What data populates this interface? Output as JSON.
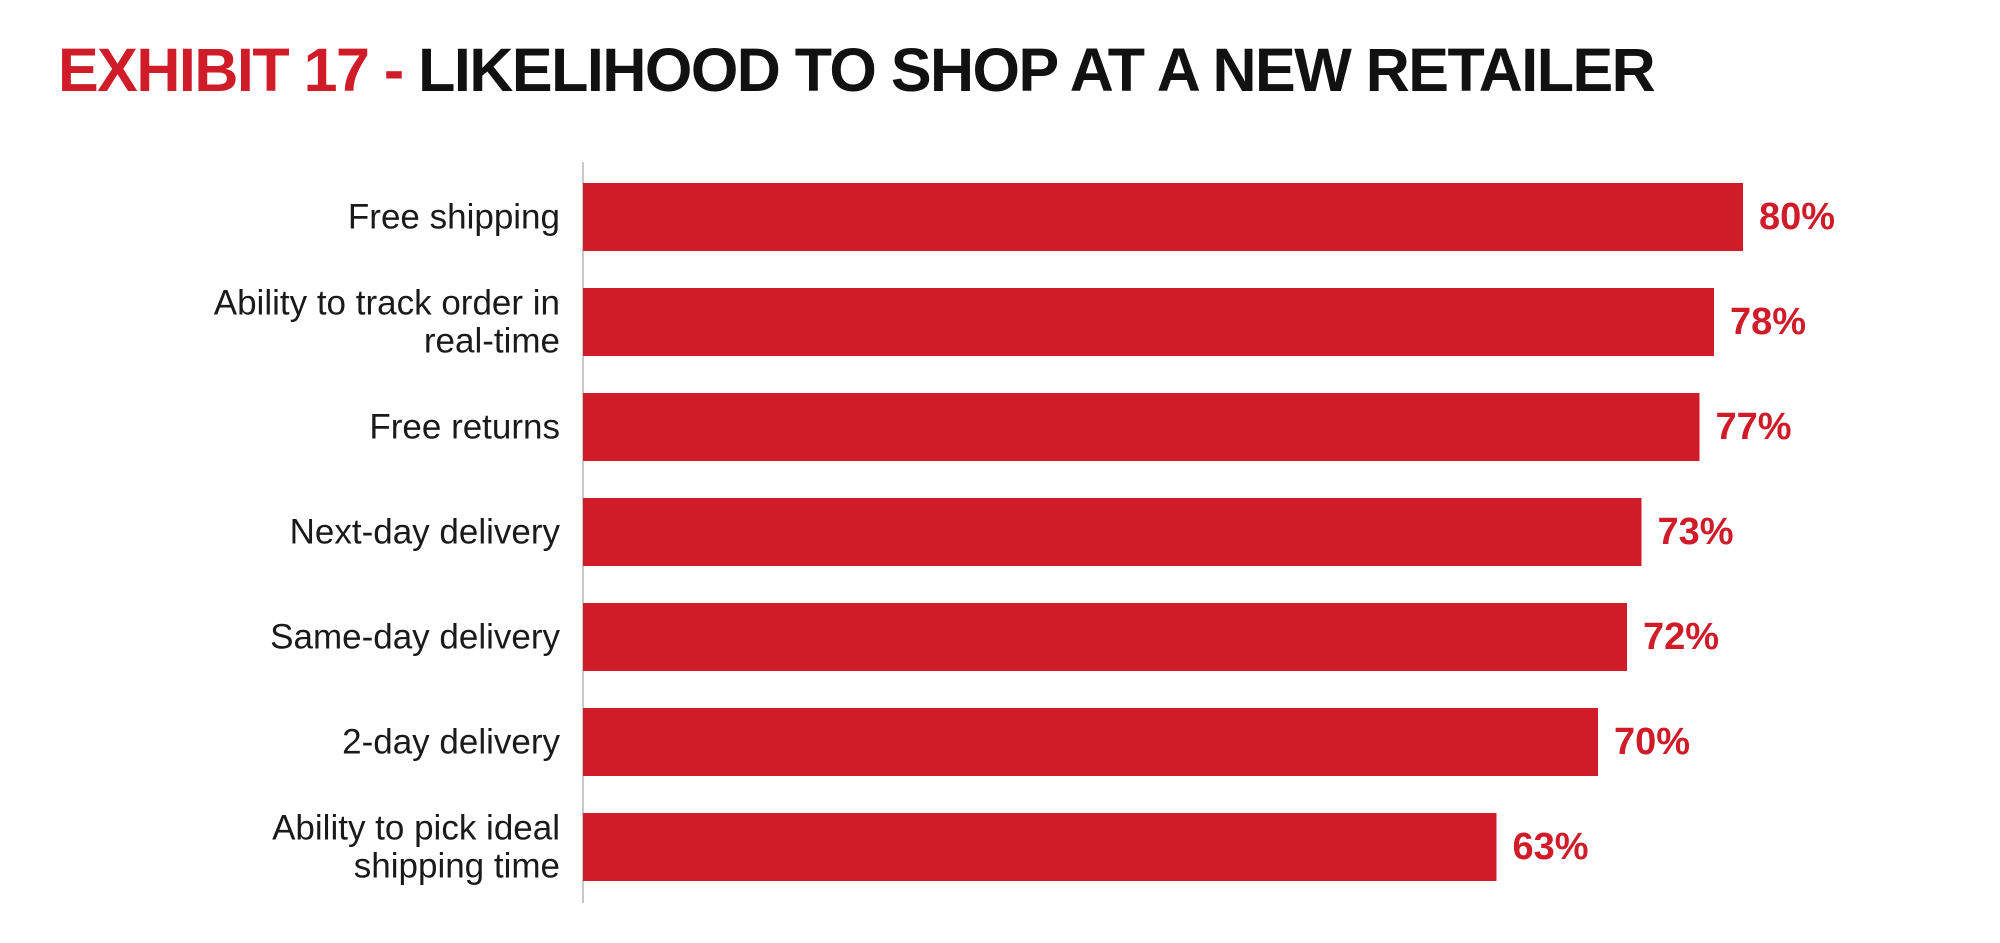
{
  "title": {
    "prefix": "EXHIBIT 17 -",
    "main": "LIKELIHOOD TO SHOP AT A NEW RETAILER"
  },
  "colors": {
    "bar": "#d01c29",
    "value_label": "#d01c29",
    "title_prefix": "#d01c29",
    "title_main": "#111111",
    "axis": "#c8c8c8",
    "text": "#1a1a1a"
  },
  "chart_data": {
    "type": "bar",
    "orientation": "horizontal",
    "title": "EXHIBIT 17 - LIKELIHOOD TO SHOP AT A NEW RETAILER",
    "xlabel": "",
    "ylabel": "",
    "xlim": [
      0,
      100
    ],
    "grid": false,
    "legend": "none",
    "categories": [
      [
        "Free shipping"
      ],
      [
        "Ability to track order in",
        "real-time"
      ],
      [
        "Free returns"
      ],
      [
        "Next-day delivery"
      ],
      [
        "Same-day delivery"
      ],
      [
        "2-day delivery"
      ],
      [
        "Ability to pick ideal",
        "shipping time"
      ]
    ],
    "values": [
      80,
      78,
      77,
      73,
      72,
      70,
      63
    ],
    "value_labels": [
      "80%",
      "78%",
      "77%",
      "73%",
      "72%",
      "70%",
      "63%"
    ]
  }
}
